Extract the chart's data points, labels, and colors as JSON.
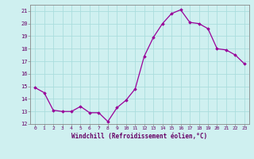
{
  "x": [
    0,
    1,
    2,
    3,
    4,
    5,
    6,
    7,
    8,
    9,
    10,
    11,
    12,
    13,
    14,
    15,
    16,
    17,
    18,
    19,
    20,
    21,
    22,
    23
  ],
  "y": [
    14.9,
    14.5,
    13.1,
    13.0,
    13.0,
    13.4,
    12.9,
    12.9,
    12.2,
    13.3,
    13.9,
    14.8,
    17.4,
    18.9,
    20.0,
    20.8,
    21.1,
    20.1,
    20.0,
    19.6,
    18.0,
    17.9,
    17.5,
    16.8
  ],
  "xlim": [
    -0.5,
    23.5
  ],
  "ylim": [
    12,
    21.5
  ],
  "yticks": [
    12,
    13,
    14,
    15,
    16,
    17,
    18,
    19,
    20,
    21
  ],
  "xticks": [
    0,
    1,
    2,
    3,
    4,
    5,
    6,
    7,
    8,
    9,
    10,
    11,
    12,
    13,
    14,
    15,
    16,
    17,
    18,
    19,
    20,
    21,
    22,
    23
  ],
  "xlabel": "Windchill (Refroidissement éolien,°C)",
  "line_color": "#990099",
  "marker": "D",
  "marker_size": 1.8,
  "bg_color": "#cff0f0",
  "grid_color": "#aadddd",
  "tick_color": "#660066",
  "label_color": "#660066",
  "spine_color": "#888888"
}
